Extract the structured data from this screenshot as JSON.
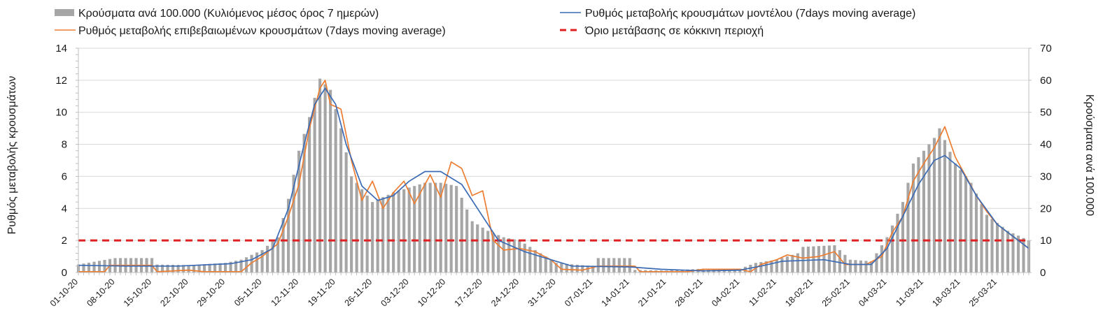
{
  "chart_data": {
    "type": "bar",
    "title": "",
    "ylabel_left": "Ρυθμός μεταβολής κρουσμάτων",
    "ylabel_right": "Κρούσματα ανά 100.000",
    "ylim_left": [
      0,
      14
    ],
    "ylim_right": [
      0,
      70
    ],
    "yticks_left": [
      "0",
      "2",
      "4",
      "6",
      "8",
      "10",
      "12",
      "14"
    ],
    "yticks_right": [
      "0",
      "10",
      "20",
      "30",
      "40",
      "50",
      "60",
      "70"
    ],
    "x_start": "2020-10-01",
    "x_end": "2021-03-31",
    "x_tick_labels": [
      "01-10-20",
      "08-10-20",
      "15-10-20",
      "22-10-20",
      "29-10-20",
      "05-11-20",
      "12-11-20",
      "19-11-20",
      "26-11-20",
      "03-12-20",
      "10-12-20",
      "17-12-20",
      "24-12-20",
      "31-12-20",
      "07-01-21",
      "14-01-21",
      "21-01-21",
      "28-01-21",
      "04-02-21",
      "11-02-21",
      "18-02-21",
      "25-02-21",
      "04-03-21",
      "11-03-21",
      "18-03-21",
      "25-03-21"
    ],
    "grid": true,
    "legend_position": "top",
    "series": [
      {
        "name": "Κρούσματα ανά 100.000 (Κυλιόμενος μέσος όρος 7 ημερών)",
        "kind": "bar",
        "axis": "right",
        "color": "#a6a6a6",
        "points": [
          [
            "2020-10-01",
            2.5
          ],
          [
            "2020-10-08",
            4.5
          ],
          [
            "2020-10-15",
            4.5
          ],
          [
            "2020-10-16",
            2.5
          ],
          [
            "2020-10-22",
            2.3
          ],
          [
            "2020-10-29",
            3.0
          ],
          [
            "2020-11-01",
            4.0
          ],
          [
            "2020-11-05",
            7.0
          ],
          [
            "2020-11-08",
            11.0
          ],
          [
            "2020-11-10",
            23.0
          ],
          [
            "2020-11-12",
            38.0
          ],
          [
            "2020-11-14",
            48.5
          ],
          [
            "2020-11-16",
            60.5
          ],
          [
            "2020-11-18",
            57.0
          ],
          [
            "2020-11-20",
            45.0
          ],
          [
            "2020-11-22",
            30.0
          ],
          [
            "2020-11-26",
            22.0
          ],
          [
            "2020-11-30",
            25.0
          ],
          [
            "2020-12-03",
            26.5
          ],
          [
            "2020-12-06",
            28.0
          ],
          [
            "2020-12-09",
            28.0
          ],
          [
            "2020-12-12",
            27.0
          ],
          [
            "2020-12-15",
            16.0
          ],
          [
            "2020-12-18",
            13.0
          ],
          [
            "2020-12-21",
            11.0
          ],
          [
            "2020-12-24",
            10.0
          ],
          [
            "2020-12-27",
            7.0
          ],
          [
            "2020-12-31",
            3.0
          ],
          [
            "2021-01-07",
            2.0
          ],
          [
            "2021-01-08",
            4.5
          ],
          [
            "2021-01-14",
            4.5
          ],
          [
            "2021-01-15",
            0.8
          ],
          [
            "2021-01-21",
            0.6
          ],
          [
            "2021-01-28",
            1.2
          ],
          [
            "2021-02-04",
            1.2
          ],
          [
            "2021-02-07",
            3.0
          ],
          [
            "2021-02-11",
            4.0
          ],
          [
            "2021-02-15",
            6.0
          ],
          [
            "2021-02-16",
            8.0
          ],
          [
            "2021-02-22",
            8.5
          ],
          [
            "2021-02-25",
            4.0
          ],
          [
            "2021-03-01",
            3.5
          ],
          [
            "2021-03-04",
            11.0
          ],
          [
            "2021-03-07",
            22.0
          ],
          [
            "2021-03-09",
            34.0
          ],
          [
            "2021-03-11",
            38.0
          ],
          [
            "2021-03-13",
            42.0
          ],
          [
            "2021-03-14",
            45.0
          ],
          [
            "2021-03-17",
            34.0
          ],
          [
            "2021-03-20",
            28.0
          ],
          [
            "2021-03-23",
            18.0
          ],
          [
            "2021-03-27",
            13.0
          ],
          [
            "2021-03-31",
            10.0
          ]
        ]
      },
      {
        "name": "Ρυθμός μεταβολής επιβεβαιωμένων κρουσμάτων (7days moving average)",
        "kind": "line",
        "axis": "left",
        "color": "#ed7d31",
        "points": [
          [
            "2020-10-01",
            0.05
          ],
          [
            "2020-10-06",
            0.05
          ],
          [
            "2020-10-07",
            0.45
          ],
          [
            "2020-10-15",
            0.45
          ],
          [
            "2020-10-16",
            0.05
          ],
          [
            "2020-10-22",
            0.15
          ],
          [
            "2020-10-25",
            0.05
          ],
          [
            "2020-11-01",
            0.05
          ],
          [
            "2020-11-03",
            0.6
          ],
          [
            "2020-11-05",
            1.0
          ],
          [
            "2020-11-08",
            1.8
          ],
          [
            "2020-11-10",
            3.5
          ],
          [
            "2020-11-12",
            5.5
          ],
          [
            "2020-11-14",
            9.0
          ],
          [
            "2020-11-16",
            11.5
          ],
          [
            "2020-11-17",
            12.0
          ],
          [
            "2020-11-18",
            10.5
          ],
          [
            "2020-11-20",
            10.2
          ],
          [
            "2020-11-22",
            7.0
          ],
          [
            "2020-11-24",
            4.5
          ],
          [
            "2020-11-26",
            5.7
          ],
          [
            "2020-11-28",
            4.0
          ],
          [
            "2020-11-30",
            5.0
          ],
          [
            "2020-12-02",
            5.7
          ],
          [
            "2020-12-04",
            4.3
          ],
          [
            "2020-12-07",
            6.1
          ],
          [
            "2020-12-09",
            4.7
          ],
          [
            "2020-12-11",
            6.9
          ],
          [
            "2020-12-13",
            6.5
          ],
          [
            "2020-12-15",
            4.8
          ],
          [
            "2020-12-17",
            5.1
          ],
          [
            "2020-12-19",
            2.0
          ],
          [
            "2020-12-21",
            1.4
          ],
          [
            "2020-12-24",
            1.5
          ],
          [
            "2020-12-27",
            1.3
          ],
          [
            "2020-12-30",
            0.8
          ],
          [
            "2021-01-01",
            0.2
          ],
          [
            "2021-01-05",
            0.15
          ],
          [
            "2021-01-08",
            0.4
          ],
          [
            "2021-01-15",
            0.4
          ],
          [
            "2021-01-16",
            0.05
          ],
          [
            "2021-01-25",
            0.05
          ],
          [
            "2021-01-28",
            0.2
          ],
          [
            "2021-02-04",
            0.2
          ],
          [
            "2021-02-06",
            0.05
          ],
          [
            "2021-02-08",
            0.5
          ],
          [
            "2021-02-11",
            0.8
          ],
          [
            "2021-02-13",
            1.1
          ],
          [
            "2021-02-16",
            0.9
          ],
          [
            "2021-02-19",
            1.0
          ],
          [
            "2021-02-22",
            1.3
          ],
          [
            "2021-02-24",
            0.5
          ],
          [
            "2021-02-28",
            0.5
          ],
          [
            "2021-03-03",
            1.0
          ],
          [
            "2021-03-05",
            2.5
          ],
          [
            "2021-03-07",
            3.5
          ],
          [
            "2021-03-09",
            5.7
          ],
          [
            "2021-03-11",
            6.8
          ],
          [
            "2021-03-13",
            7.8
          ],
          [
            "2021-03-15",
            9.1
          ],
          [
            "2021-03-17",
            7.2
          ],
          [
            "2021-03-19",
            6.0
          ],
          [
            "2021-03-21",
            4.8
          ],
          [
            "2021-03-23",
            3.8
          ],
          [
            "2021-03-25",
            3.0
          ],
          [
            "2021-03-27",
            2.5
          ],
          [
            "2021-03-29",
            2.0
          ],
          [
            "2021-03-31",
            1.5
          ]
        ]
      },
      {
        "name": "Ρυθμός μεταβολής κρουσμάτων μοντέλου (7days moving average)",
        "kind": "line",
        "axis": "left",
        "color": "#3b6bb5",
        "points": [
          [
            "2020-10-01",
            0.45
          ],
          [
            "2020-10-10",
            0.4
          ],
          [
            "2020-10-20",
            0.4
          ],
          [
            "2020-10-30",
            0.55
          ],
          [
            "2020-11-03",
            0.8
          ],
          [
            "2020-11-07",
            1.5
          ],
          [
            "2020-11-10",
            4.0
          ],
          [
            "2020-11-13",
            8.0
          ],
          [
            "2020-11-15",
            10.5
          ],
          [
            "2020-11-17",
            11.5
          ],
          [
            "2020-11-19",
            10.5
          ],
          [
            "2020-11-21",
            8.0
          ],
          [
            "2020-11-24",
            5.4
          ],
          [
            "2020-11-27",
            4.5
          ],
          [
            "2020-11-30",
            4.8
          ],
          [
            "2020-12-03",
            5.7
          ],
          [
            "2020-12-06",
            6.3
          ],
          [
            "2020-12-09",
            6.3
          ],
          [
            "2020-12-13",
            5.5
          ],
          [
            "2020-12-17",
            3.5
          ],
          [
            "2020-12-20",
            2.0
          ],
          [
            "2020-12-25",
            1.3
          ],
          [
            "2020-12-30",
            0.8
          ],
          [
            "2021-01-03",
            0.4
          ],
          [
            "2021-01-14",
            0.35
          ],
          [
            "2021-01-20",
            0.2
          ],
          [
            "2021-01-28",
            0.1
          ],
          [
            "2021-02-04",
            0.15
          ],
          [
            "2021-02-08",
            0.4
          ],
          [
            "2021-02-12",
            0.7
          ],
          [
            "2021-02-20",
            0.8
          ],
          [
            "2021-02-25",
            0.5
          ],
          [
            "2021-03-01",
            0.5
          ],
          [
            "2021-03-04",
            1.5
          ],
          [
            "2021-03-07",
            3.5
          ],
          [
            "2021-03-10",
            5.5
          ],
          [
            "2021-03-13",
            7.0
          ],
          [
            "2021-03-15",
            7.3
          ],
          [
            "2021-03-18",
            6.5
          ],
          [
            "2021-03-21",
            4.8
          ],
          [
            "2021-03-25",
            3.0
          ],
          [
            "2021-03-29",
            2.0
          ],
          [
            "2021-03-31",
            1.5
          ]
        ]
      },
      {
        "name": "Όριο μετάβασης σε κόκκινη περιοχή",
        "kind": "threshold",
        "axis": "left",
        "color": "#e02020",
        "value": 2
      }
    ]
  }
}
